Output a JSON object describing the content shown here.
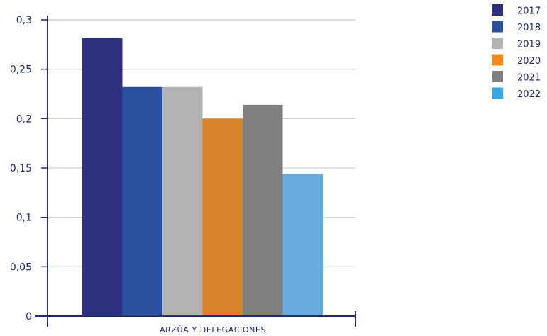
{
  "chart_data": {
    "type": "bar",
    "categories": [
      "ARZÚA Y DELEGACIONES"
    ],
    "series": [
      {
        "name": "2017",
        "values": [
          0.282
        ],
        "color": "#2e2f7d"
      },
      {
        "name": "2018",
        "values": [
          0.232
        ],
        "color": "#2b519e"
      },
      {
        "name": "2019",
        "values": [
          0.232
        ],
        "color": "#b3b3b3"
      },
      {
        "name": "2020",
        "values": [
          0.2
        ],
        "color": "#db832b"
      },
      {
        "name": "2021",
        "values": [
          0.214
        ],
        "color": "#808080"
      },
      {
        "name": "2022",
        "values": [
          0.144
        ],
        "color": "#6aa9e0"
      }
    ],
    "ylim": [
      0,
      0.3
    ],
    "yticks": [
      "0",
      "0,05",
      "0,1",
      "0,15",
      "0,2",
      "0,25",
      "0,3"
    ],
    "grid": true,
    "legend": {
      "position": "top-right",
      "entries": [
        {
          "label": "2017",
          "color": "#2e2f7d"
        },
        {
          "label": "2018",
          "color": "#2b519e"
        },
        {
          "label": "2019",
          "color": "#b3b3b3"
        },
        {
          "label": "2020",
          "color": "#f18a1c"
        },
        {
          "label": "2021",
          "color": "#808080"
        },
        {
          "label": "2022",
          "color": "#3aa6de"
        }
      ]
    }
  }
}
